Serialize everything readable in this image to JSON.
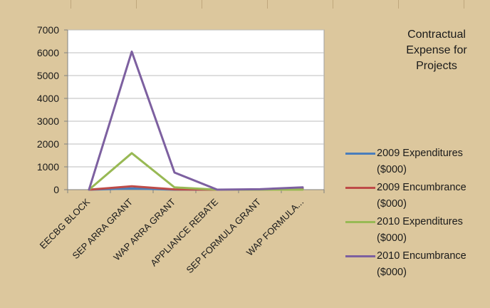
{
  "chart_data": {
    "type": "line",
    "title": "Contractual\nExpense for\nProjects",
    "categories": [
      "EECBG BLOCK",
      "SEP ARRA GRANT",
      "WAP ARRA GRANT",
      "APPLIANCE REBATE",
      "SEP FORMULA GRANT",
      "WAP FORMULA..."
    ],
    "ylim": [
      0,
      7000
    ],
    "yticks": [
      0,
      1000,
      2000,
      3000,
      4000,
      5000,
      6000,
      7000
    ],
    "grid": true,
    "legend_position": "right",
    "series": [
      {
        "name": "2009 Expenditures ($000)",
        "color": "#4a7ebb",
        "values": [
          0,
          50,
          0,
          0,
          0,
          60
        ]
      },
      {
        "name": "2009 Encumbrance ($000)",
        "color": "#be4b48",
        "values": [
          0,
          150,
          10,
          0,
          0,
          20
        ]
      },
      {
        "name": "2010 Expenditures ($000)",
        "color": "#98b954",
        "values": [
          0,
          1600,
          100,
          0,
          0,
          0
        ]
      },
      {
        "name": "2010 Encumbrance ($000)",
        "color": "#7d60a0",
        "values": [
          0,
          6050,
          750,
          0,
          20,
          100
        ]
      }
    ]
  }
}
